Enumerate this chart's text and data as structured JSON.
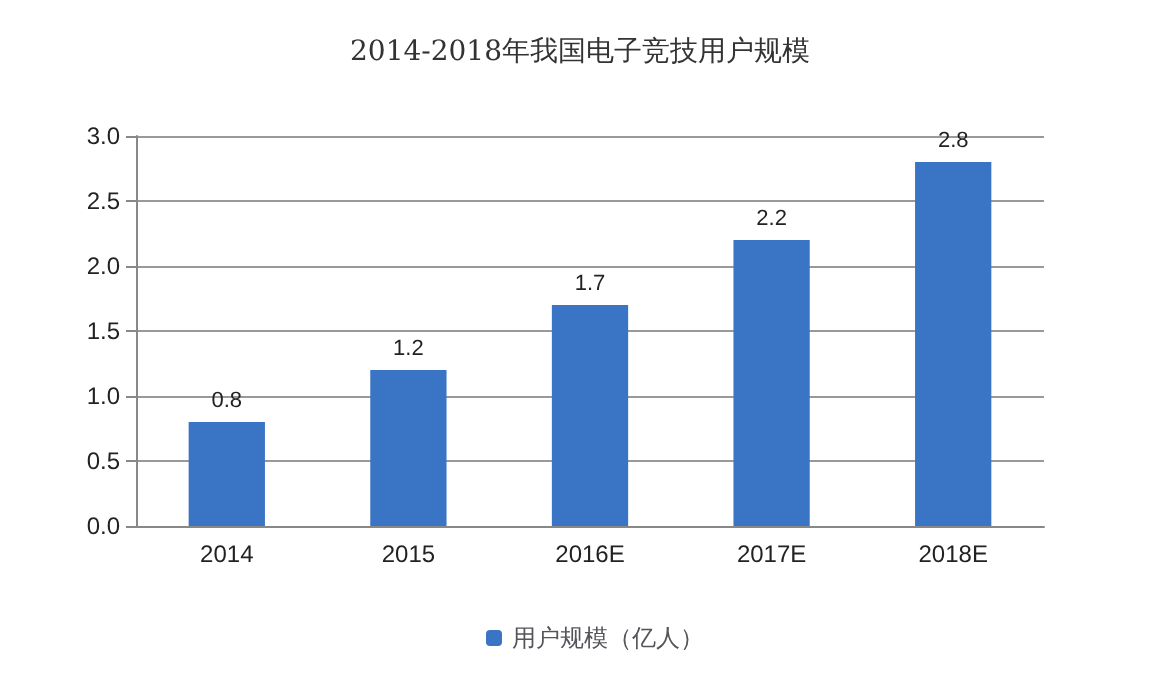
{
  "chart_data": {
    "type": "bar",
    "title": "2014-2018年我国电子竞技用户规模",
    "categories": [
      "2014",
      "2015",
      "2016E",
      "2017E",
      "2018E"
    ],
    "series": [
      {
        "name": "用户规模（亿人）",
        "color": "#3a74c4",
        "values": [
          0.8,
          1.2,
          1.7,
          2.2,
          2.8
        ]
      }
    ],
    "ylim": [
      0,
      3
    ],
    "yticks": [
      {
        "value": 0,
        "label": "0.0"
      },
      0.5,
      {
        "value": 1,
        "label": "1.0"
      },
      1.5,
      {
        "value": 2,
        "label": "2.0"
      },
      2.5,
      {
        "value": 3,
        "label": "3.0"
      }
    ],
    "grid": "y",
    "legend": "bottom",
    "data_labels": true
  }
}
